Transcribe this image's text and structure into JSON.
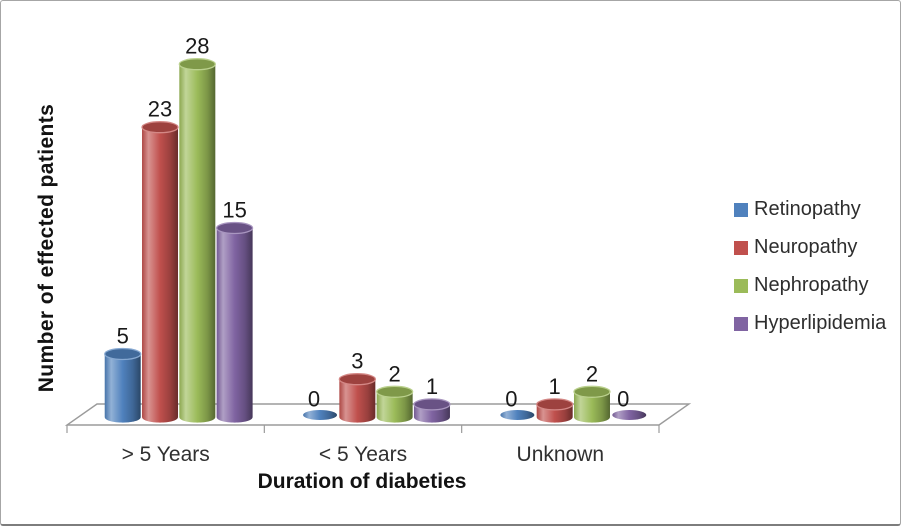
{
  "chart_data": {
    "type": "bar",
    "subtype": "3d-cylinder",
    "title": "",
    "xlabel": "Duration of diabeties",
    "ylabel": "Number of effected patients",
    "categories": [
      "> 5 Years",
      "< 5 Years",
      "Unknown"
    ],
    "series": [
      {
        "name": "Retinopathy",
        "color": "#4f81bd",
        "values": [
          5,
          0,
          0
        ]
      },
      {
        "name": "Neuropathy",
        "color": "#c0504d",
        "values": [
          23,
          3,
          1
        ]
      },
      {
        "name": "Nephropathy",
        "color": "#9bbb59",
        "values": [
          28,
          2,
          2
        ]
      },
      {
        "name": "Hyperlipidemia",
        "color": "#8064a2",
        "values": [
          15,
          1,
          0
        ]
      }
    ],
    "ylim": [
      0,
      28
    ],
    "grid": false,
    "y_axis_ticks_visible": false,
    "legend_position": "right",
    "data_labels": true,
    "floor_color": "#ffffff",
    "axis_line_color": "#9b9b9b"
  }
}
